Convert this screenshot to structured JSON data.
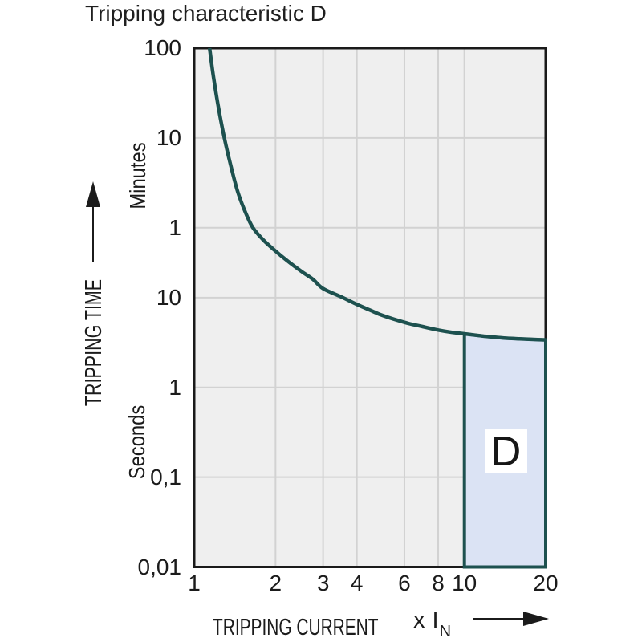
{
  "header": {
    "title": "Tripping characteristic D"
  },
  "y_axis": {
    "label": "TRIPPING TIME",
    "unit_upper": "Minutes",
    "unit_lower": "Seconds"
  },
  "x_axis": {
    "label": "TRIPPING CURRENT",
    "multiplier_x": "x",
    "multiplier_base": "I",
    "multiplier_sub": "N"
  },
  "chart_data": {
    "type": "line",
    "title": "Tripping characteristic D",
    "xlabel": "TRIPPING CURRENT (x IN)",
    "ylabel": "TRIPPING TIME",
    "x_scale": "log",
    "x_range": [
      1,
      20
    ],
    "y_scale": "log",
    "y_unit": "seconds",
    "y_range": [
      0.01,
      6000
    ],
    "grid": true,
    "x_ticks": [
      {
        "label": "1",
        "value": 1
      },
      {
        "label": "2",
        "value": 2
      },
      {
        "label": "3",
        "value": 3
      },
      {
        "label": "4",
        "value": 4
      },
      {
        "label": "6",
        "value": 6
      },
      {
        "label": "8",
        "value": 8
      },
      {
        "label": "10",
        "value": 10
      },
      {
        "label": "20",
        "value": 20
      }
    ],
    "y_ticks": [
      {
        "label": "100",
        "unit": "minutes",
        "seconds": 6000
      },
      {
        "label": "10",
        "unit": "minutes",
        "seconds": 600
      },
      {
        "label": "1",
        "unit": "minutes",
        "seconds": 60
      },
      {
        "label": "10",
        "unit": "seconds",
        "seconds": 10
      },
      {
        "label": "1",
        "unit": "seconds",
        "seconds": 1
      },
      {
        "label": "0,1",
        "unit": "seconds",
        "seconds": 0.1
      },
      {
        "label": "0,01",
        "unit": "seconds",
        "seconds": 0.01
      }
    ],
    "x_gridlines": [
      2,
      3,
      4,
      6,
      8,
      10
    ],
    "y_gridlines_seconds": [
      600,
      60,
      10,
      1,
      0.1
    ],
    "series": [
      {
        "name": "D tripping curve",
        "points_x_vs_seconds": [
          [
            1.14,
            6000
          ],
          [
            1.18,
            2800
          ],
          [
            1.23,
            1300
          ],
          [
            1.29,
            620
          ],
          [
            1.36,
            310
          ],
          [
            1.45,
            150
          ],
          [
            1.55,
            88
          ],
          [
            1.65,
            60
          ],
          [
            1.8,
            44
          ],
          [
            2.0,
            33
          ],
          [
            2.2,
            26
          ],
          [
            2.5,
            19.5
          ],
          [
            2.75,
            16
          ],
          [
            3.0,
            12.6
          ],
          [
            3.5,
            10.2
          ],
          [
            4.0,
            8.4
          ],
          [
            4.5,
            7.2
          ],
          [
            5.0,
            6.3
          ],
          [
            6.0,
            5.3
          ],
          [
            7.0,
            4.75
          ],
          [
            8.0,
            4.35
          ],
          [
            9.0,
            4.1
          ],
          [
            10.0,
            3.95
          ],
          [
            12,
            3.7
          ],
          [
            14,
            3.55
          ],
          [
            16,
            3.47
          ],
          [
            18,
            3.42
          ],
          [
            20,
            3.38
          ]
        ]
      }
    ],
    "region": {
      "label": "D",
      "x_from": 10,
      "x_to": 20,
      "y_from_seconds": 0.01,
      "y_to": "curve"
    },
    "colors": {
      "curve": "#1d514f",
      "plot_background": "#efefef",
      "gridline": "#d2d2d2",
      "plot_border": "#1a1a1a",
      "region_fill": "#dbe3f4",
      "region_border": "#1d514f",
      "text": "#1b1b1b",
      "background": "#ffffff"
    }
  }
}
